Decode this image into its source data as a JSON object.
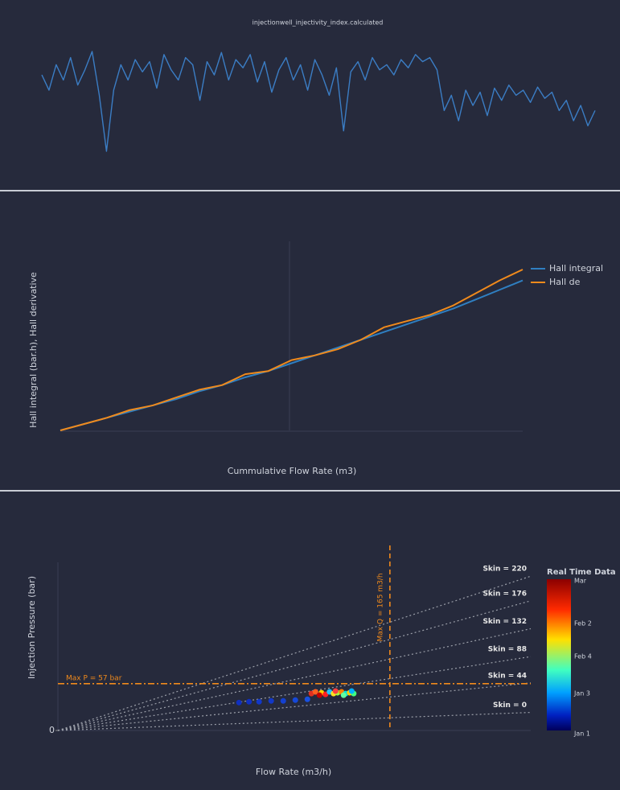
{
  "chart_data": [
    {
      "type": "line",
      "title": "injectionwell_injectivity_index.calculated",
      "color": "#3b7dc4",
      "values": [
        75,
        60,
        85,
        70,
        92,
        65,
        80,
        98,
        55,
        0,
        60,
        85,
        70,
        90,
        78,
        88,
        62,
        95,
        80,
        70,
        92,
        85,
        50,
        88,
        75,
        97,
        70,
        90,
        82,
        95,
        68,
        88,
        58,
        80,
        92,
        70,
        85,
        60,
        90,
        75,
        55,
        82,
        20,
        78,
        88,
        70,
        92,
        80,
        85,
        75,
        90,
        82,
        95,
        88,
        92,
        80,
        40,
        55,
        30,
        60,
        45,
        58,
        35,
        62,
        50,
        65,
        55,
        60,
        48,
        63,
        52,
        58,
        40,
        50,
        30,
        45,
        25,
        40
      ]
    },
    {
      "type": "line",
      "xlabel": "Cummulative Flow Rate (m3)",
      "ylabel": "Hall integral (bar.h), Hall derivative",
      "series": [
        {
          "name": "Hall integral",
          "color": "#2f7fc1",
          "values": [
            0,
            4,
            8,
            12,
            16,
            20,
            25,
            29,
            34,
            38,
            43,
            48,
            53,
            58,
            63,
            68,
            73,
            78,
            84,
            90,
            96
          ]
        },
        {
          "name": "Hall de",
          "color": "#f08a1c",
          "values": [
            0,
            4,
            8,
            13,
            16,
            21,
            26,
            29,
            36,
            38,
            45,
            48,
            52,
            58,
            66,
            70,
            74,
            80,
            88,
            96,
            103
          ]
        }
      ]
    },
    {
      "type": "scatter",
      "xlabel": "Flow Rate (m3/h)",
      "ylabel": "Injection Pressure (bar)",
      "xlim": [
        0,
        235
      ],
      "ylim": [
        0,
        200
      ],
      "yticks": [
        0
      ],
      "max_p": {
        "value": 57,
        "label": "Max P = 57 bar"
      },
      "max_q": {
        "value": 165,
        "label": "Max Q = 165 m3/h"
      },
      "skin_lines": [
        {
          "label": "Skin = 0",
          "end": 22
        },
        {
          "label": "Skin = 44",
          "end": 58
        },
        {
          "label": "Skin = 88",
          "end": 90
        },
        {
          "label": "Skin = 132",
          "end": 124
        },
        {
          "label": "Skin = 176",
          "end": 158
        },
        {
          "label": "Skin = 220",
          "end": 188
        }
      ],
      "x": [
        90,
        95,
        100,
        106,
        112,
        118,
        124,
        126,
        128,
        131,
        133,
        135,
        137,
        139,
        141,
        143,
        145,
        147,
        130,
        138,
        142,
        146
      ],
      "y": [
        34,
        35,
        35,
        36,
        36,
        37,
        38,
        45,
        47,
        46,
        44,
        47,
        45,
        46,
        47,
        45,
        46,
        45,
        43,
        48,
        43,
        48
      ],
      "colors": [
        "#1030c0",
        "#1030c0",
        "#1238c8",
        "#1238c8",
        "#1440d0",
        "#1648d8",
        "#1850e0",
        "#e03020",
        "#ff6020",
        "#ffd000",
        "#ff2020",
        "#20c0ff",
        "#ffe020",
        "#a0ff40",
        "#ff8000",
        "#00e0e0",
        "#ffcc00",
        "#40ff80",
        "#c00000",
        "#ff4040",
        "#60ffa0",
        "#00b0ff"
      ],
      "colorbar": {
        "title": "Real Time Data",
        "labels": [
          "Mar",
          "Feb 2",
          "Feb 4",
          "Jan 3",
          "Jan 1"
        ]
      }
    }
  ]
}
